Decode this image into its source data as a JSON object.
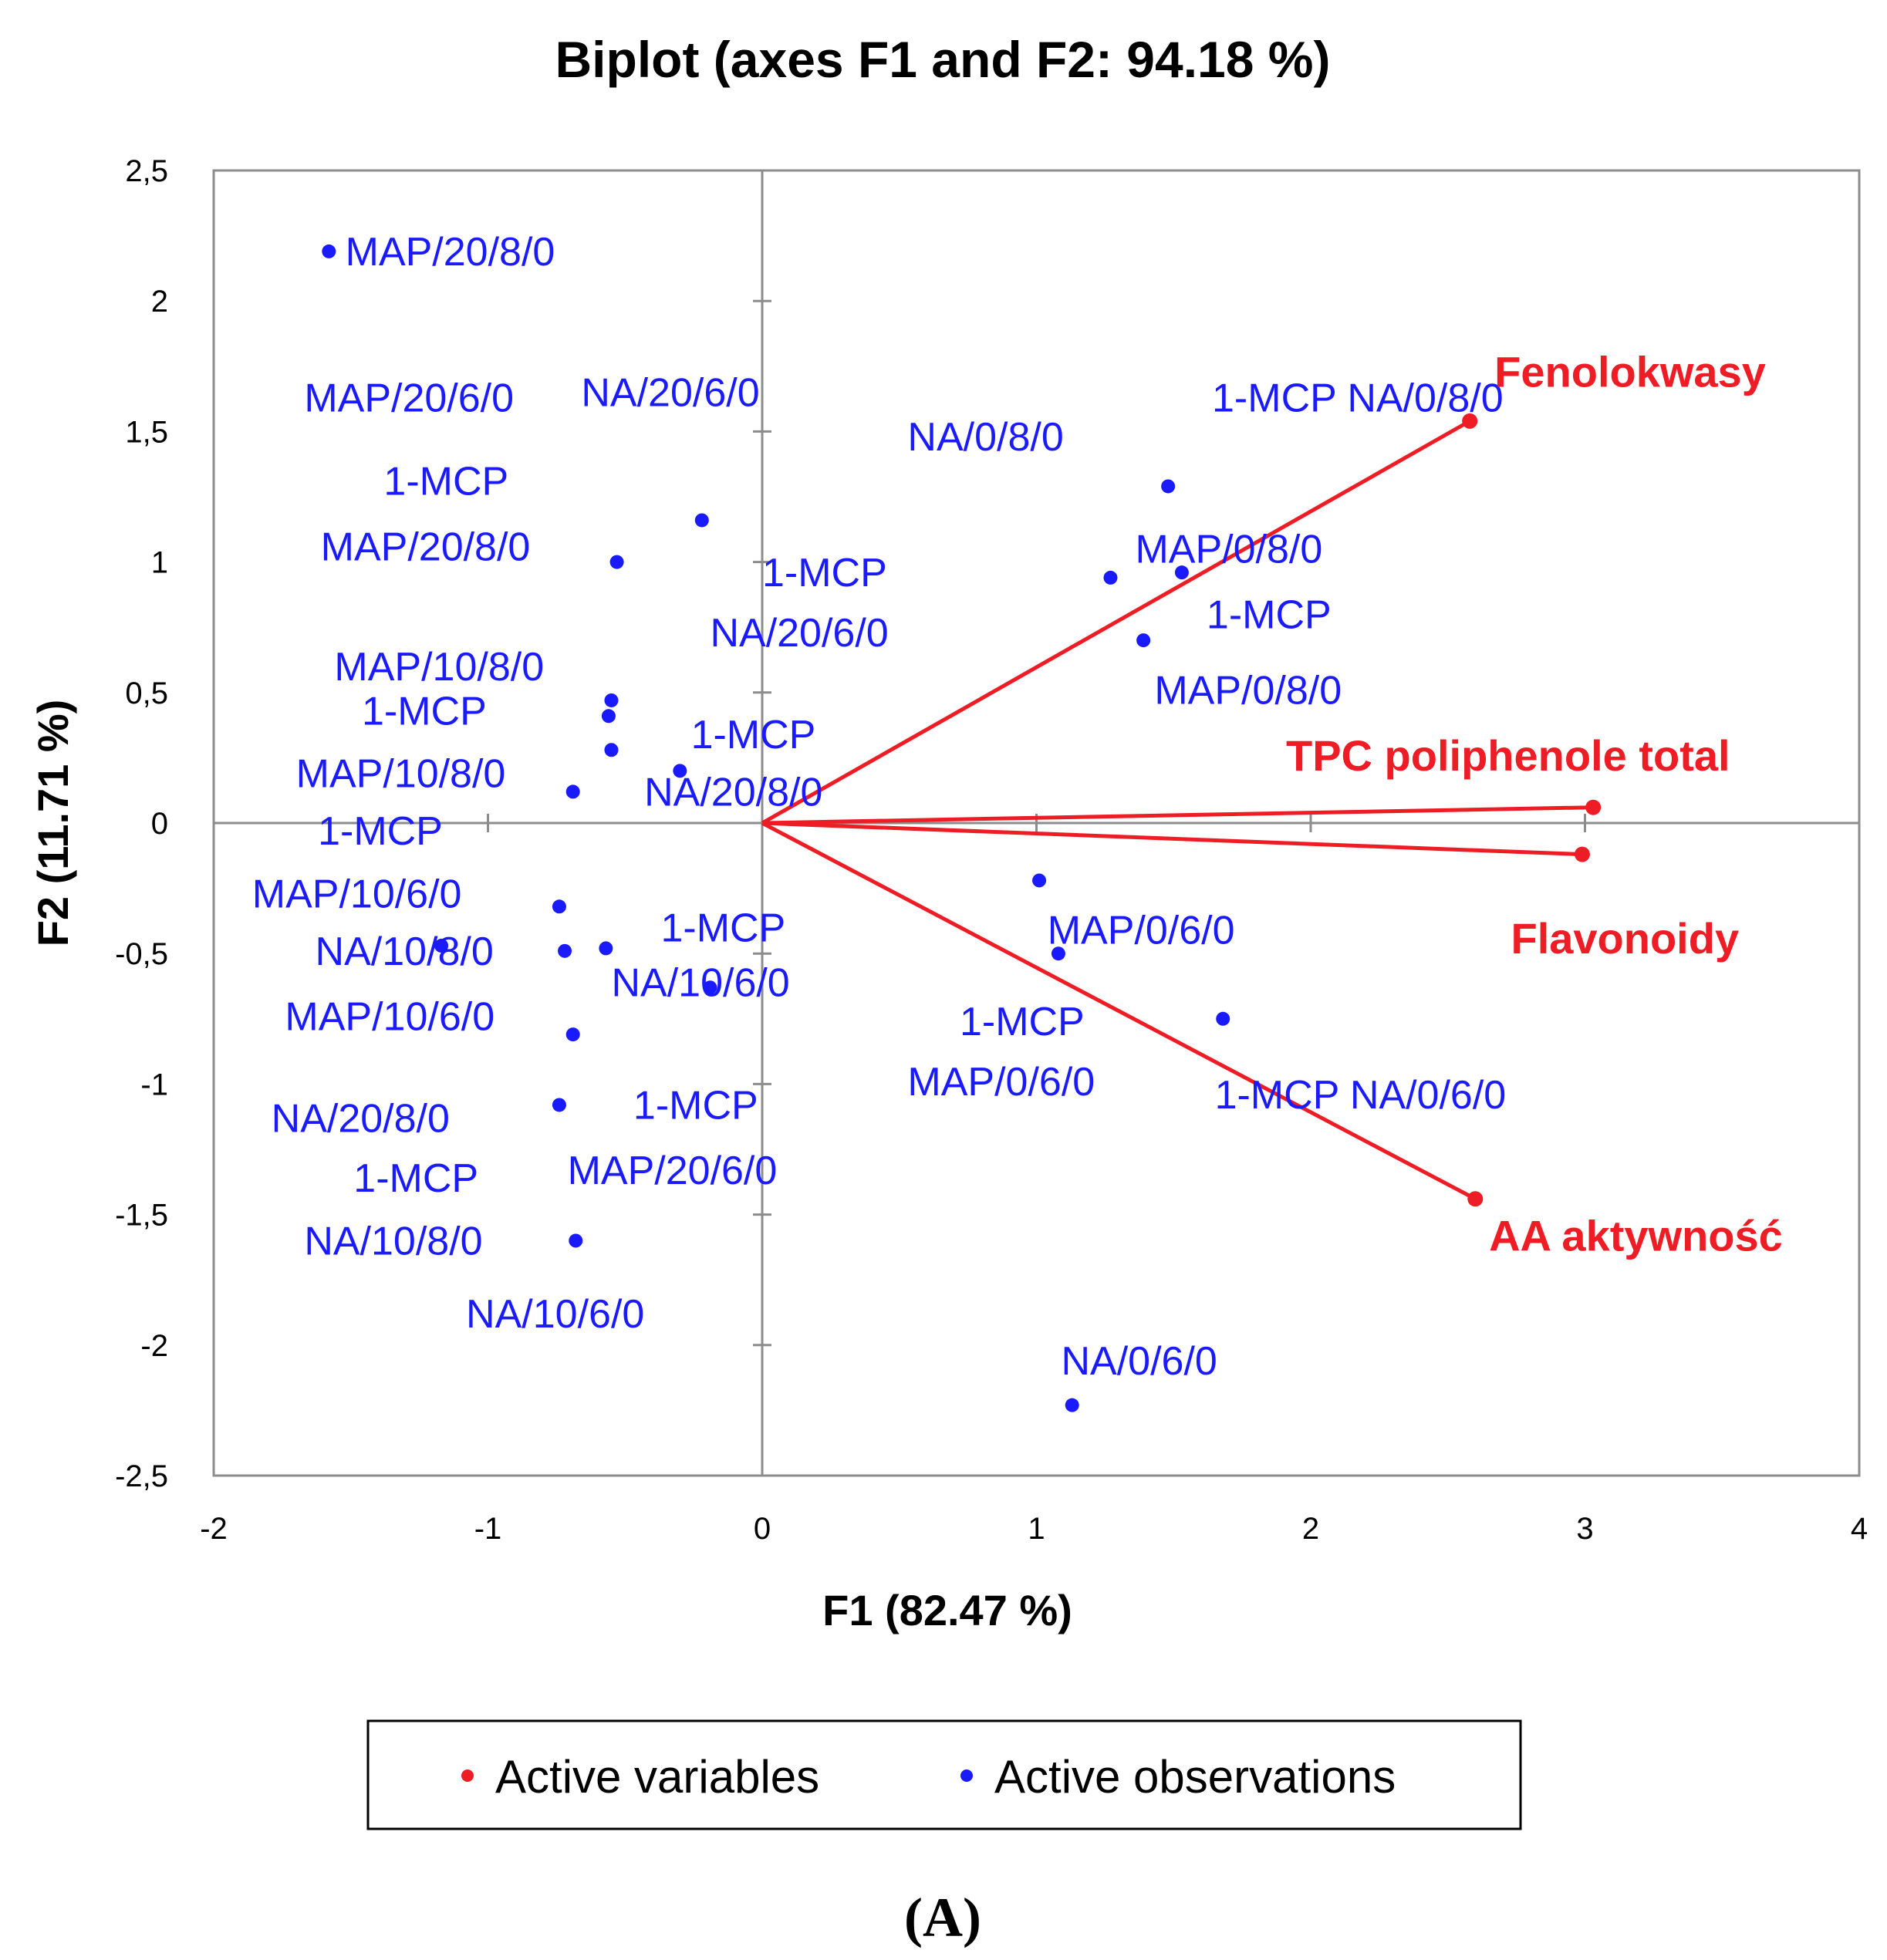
{
  "chart_data": {
    "type": "scatter",
    "title": "Biplot (axes F1 and F2: 94.18 %)",
    "xlabel": "F1 (82.47 %)",
    "ylabel": "F2 (11.71 %)",
    "xlim": [
      -2,
      4
    ],
    "ylim": [
      -2.5,
      2.5
    ],
    "xticks": [
      -2,
      -1,
      0,
      1,
      2,
      3,
      4
    ],
    "yticks": [
      2.5,
      2,
      1.5,
      1,
      0.5,
      0,
      -0.5,
      -1,
      -1.5,
      -2,
      -2.5
    ],
    "xtick_labels": [
      "-2",
      "-1",
      "0",
      "1",
      "2",
      "3",
      "4"
    ],
    "ytick_labels": [
      "2,5",
      "2",
      "1,5",
      "1",
      "0,5",
      "0",
      "-0,5",
      "-1",
      "-1,5",
      "-2",
      "-2,5"
    ],
    "grid": false,
    "colors": {
      "variables": "#ee1c24",
      "observations": "#1a1aff"
    },
    "legend": {
      "position": "bottom",
      "entries": [
        {
          "label": "Active variables",
          "color": "#ee1c24"
        },
        {
          "label": "Active observations",
          "color": "#1a1aff"
        }
      ]
    },
    "variables": [
      {
        "name": "Fenolokwasy",
        "x": 2.58,
        "y": 1.54
      },
      {
        "name": "TPC poliphenole total",
        "x": 3.03,
        "y": 0.06
      },
      {
        "name": "Flavonoidy",
        "x": 2.99,
        "y": -0.12
      },
      {
        "name": "AA aktywność",
        "x": 2.6,
        "y": -1.44
      }
    ],
    "observations": [
      {
        "x": -1.58,
        "y": 2.19
      },
      {
        "x": -0.22,
        "y": 1.16
      },
      {
        "x": -0.53,
        "y": 1.0
      },
      {
        "x": -0.55,
        "y": 0.47
      },
      {
        "x": -0.56,
        "y": 0.41
      },
      {
        "x": -0.55,
        "y": 0.28
      },
      {
        "x": -0.3,
        "y": 0.2
      },
      {
        "x": -0.69,
        "y": 0.12
      },
      {
        "x": -0.74,
        "y": -0.32
      },
      {
        "x": -1.17,
        "y": -0.47
      },
      {
        "x": -0.72,
        "y": -0.49
      },
      {
        "x": -0.57,
        "y": -0.48
      },
      {
        "x": -0.19,
        "y": -0.63
      },
      {
        "x": -0.69,
        "y": -0.81
      },
      {
        "x": -0.74,
        "y": -1.08
      },
      {
        "x": -0.68,
        "y": -1.6
      },
      {
        "x": 1.48,
        "y": 1.29
      },
      {
        "x": 1.27,
        "y": 0.94
      },
      {
        "x": 1.53,
        "y": 0.96
      },
      {
        "x": 1.39,
        "y": 0.7
      },
      {
        "x": 1.01,
        "y": -0.22
      },
      {
        "x": 1.08,
        "y": -0.5
      },
      {
        "x": 1.68,
        "y": -0.75
      },
      {
        "x": 1.13,
        "y": -2.23
      }
    ],
    "labels": [
      {
        "text": "MAP/20/8/0",
        "x": -1.52,
        "y": 2.19
      },
      {
        "text": "MAP/20/6/0",
        "x": -1.67,
        "y": 1.63
      },
      {
        "text": "NA/20/6/0",
        "x": -0.66,
        "y": 1.65
      },
      {
        "text": "1-MCP",
        "x": -1.38,
        "y": 1.31
      },
      {
        "text": "MAP/20/8/0",
        "x": -1.61,
        "y": 1.06
      },
      {
        "text": "1-MCP",
        "x": 0.0,
        "y": 0.96
      },
      {
        "text": "NA/20/6/0",
        "x": -0.19,
        "y": 0.73
      },
      {
        "text": "MAP/10/8/0",
        "x": -1.56,
        "y": 0.6
      },
      {
        "text": "1-MCP",
        "x": -1.46,
        "y": 0.43
      },
      {
        "text": "1-MCP",
        "x": -0.26,
        "y": 0.34
      },
      {
        "text": "MAP/10/8/0",
        "x": -1.7,
        "y": 0.19
      },
      {
        "text": "NA/20/8/0",
        "x": -0.43,
        "y": 0.12
      },
      {
        "text": "1-MCP",
        "x": -1.62,
        "y": -0.03
      },
      {
        "text": "MAP/10/6/0",
        "x": -1.86,
        "y": -0.27
      },
      {
        "text": "1-MCP",
        "x": -0.37,
        "y": -0.4
      },
      {
        "text": "NA/10/8/0",
        "x": -1.63,
        "y": -0.49
      },
      {
        "text": "NA/10/6/0",
        "x": -0.55,
        "y": -0.61
      },
      {
        "text": "MAP/10/6/0",
        "x": -1.74,
        "y": -0.74
      },
      {
        "text": "1-MCP",
        "x": -0.47,
        "y": -1.08
      },
      {
        "text": "NA/20/8/0",
        "x": -1.79,
        "y": -1.13
      },
      {
        "text": "MAP/20/6/0",
        "x": -0.71,
        "y": -1.33
      },
      {
        "text": "1-MCP",
        "x": -1.49,
        "y": -1.36
      },
      {
        "text": "NA/10/8/0",
        "x": -1.67,
        "y": -1.6
      },
      {
        "text": "NA/10/6/0",
        "x": -1.08,
        "y": -1.88
      },
      {
        "text": "1-MCP NA/0/8/0",
        "x": 1.64,
        "y": 1.63
      },
      {
        "text": "NA/0/8/0",
        "x": 0.53,
        "y": 1.48
      },
      {
        "text": "MAP/0/8/0",
        "x": 1.36,
        "y": 1.05
      },
      {
        "text": "1-MCP",
        "x": 1.62,
        "y": 0.8
      },
      {
        "text": "MAP/0/8/0",
        "x": 1.43,
        "y": 0.51
      },
      {
        "text": "MAP/0/6/0",
        "x": 1.04,
        "y": -0.41
      },
      {
        "text": "1-MCP",
        "x": 0.72,
        "y": -0.76
      },
      {
        "text": "MAP/0/6/0",
        "x": 0.53,
        "y": -0.99
      },
      {
        "text": "1-MCP NA/0/6/0",
        "x": 1.65,
        "y": -1.04
      },
      {
        "text": "NA/0/6/0",
        "x": 1.09,
        "y": -2.06
      }
    ],
    "variable_labels": [
      {
        "text": "Fenolokwasy",
        "x": 2.67,
        "y": 1.73
      },
      {
        "text": "TPC poliphenole total",
        "x": 1.91,
        "y": 0.26
      },
      {
        "text": "Flavonoidy",
        "x": 2.73,
        "y": -0.44
      },
      {
        "text": "AA aktywność",
        "x": 2.65,
        "y": -1.58
      }
    ]
  },
  "caption": "(A)"
}
